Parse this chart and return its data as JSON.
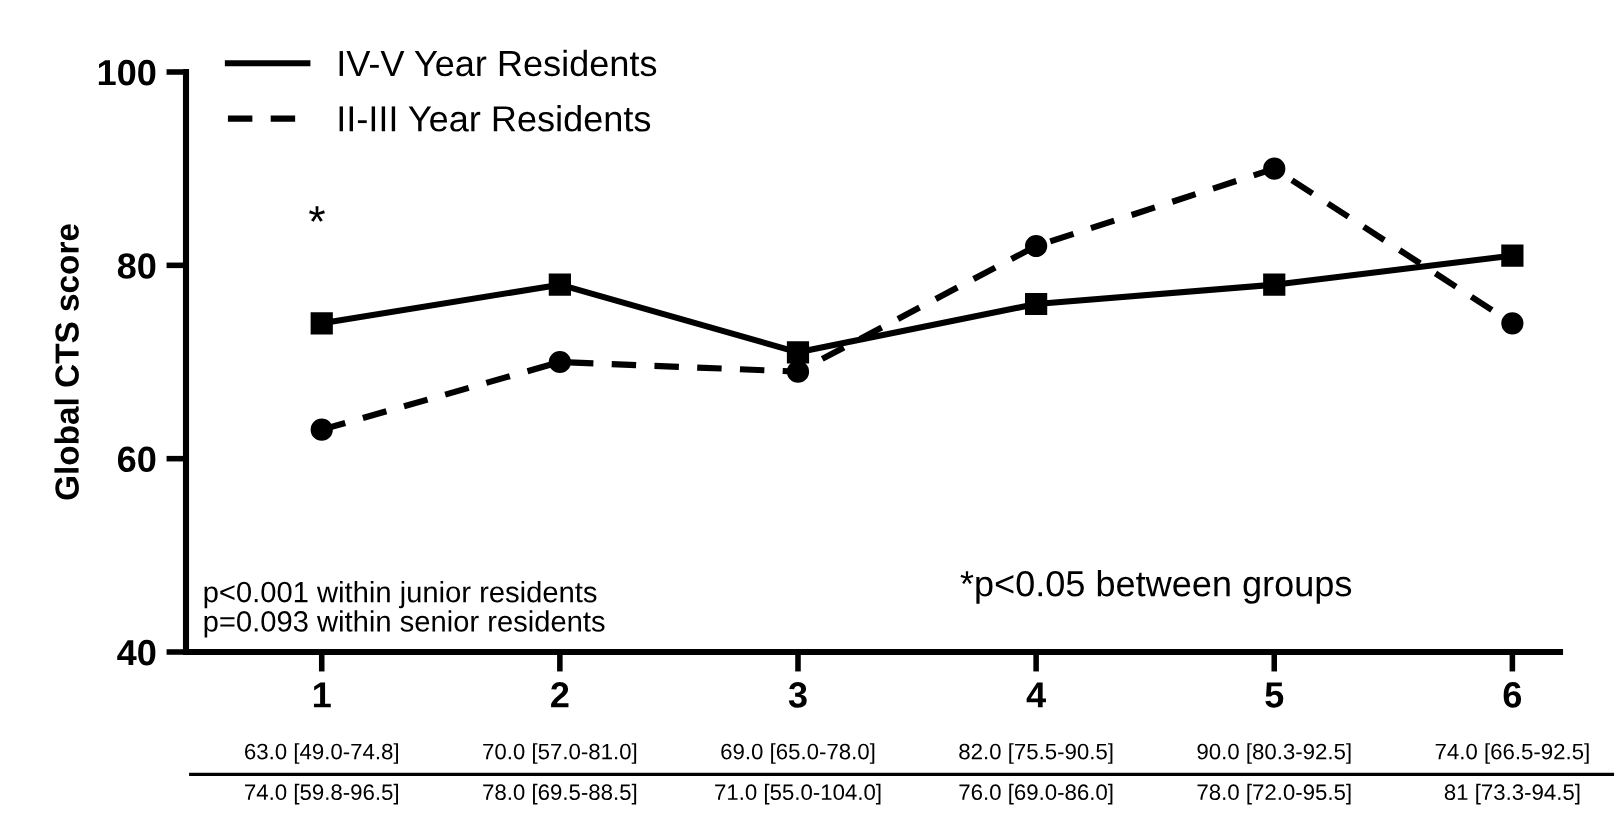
{
  "chart_data": {
    "type": "line",
    "ylabel": "Global CTS score",
    "categories": [
      "1",
      "2",
      "3",
      "4",
      "5",
      "6"
    ],
    "series": [
      {
        "name": "IV-V Year Residents",
        "color": "#000000",
        "values": [
          74,
          78,
          71,
          76,
          78,
          81
        ],
        "marker": "square",
        "line_style": "solid",
        "value_labels": [
          "74.0 [59.8-96.5]",
          "78.0 [69.5-88.5]",
          "71.0 [55.0-104.0]",
          "76.0 [69.0-86.0]",
          "78.0 [72.0-95.5]",
          "81 [73.3-94.5]"
        ]
      },
      {
        "name": "II-III Year Residents",
        "color": "#000000",
        "values": [
          63,
          70,
          69,
          82,
          90,
          74
        ],
        "marker": "circle",
        "line_style": "dashed",
        "value_labels": [
          "63.0 [49.0-74.8]",
          "70.0 [57.0-81.0]",
          "69.0 [65.0-78.0]",
          "82.0 [75.5-90.5]",
          "90.0 [80.3-92.5]",
          "74.0 [66.5-92.5]"
        ]
      }
    ],
    "ylim": [
      40,
      100
    ],
    "yticks": [
      40,
      60,
      80,
      100
    ],
    "grid": false,
    "legend": "top left",
    "annotations": [
      "*",
      "p<0.001 within junior residents\np=0.093 within senior residents",
      "*p<0.05 between groups"
    ]
  }
}
